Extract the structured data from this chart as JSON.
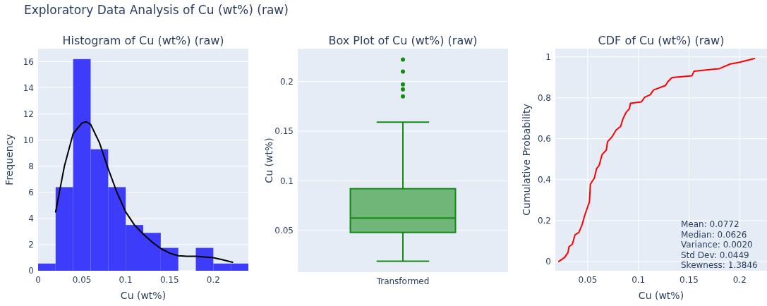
{
  "chart_data": [
    {
      "type": "histogram",
      "title": "Exploratory Data Analysis of Cu (wt%) (raw)",
      "subtitle": "Histogram of Cu (wt%) (raw)",
      "xlabel": "Cu (wt%)",
      "ylabel": "Frequency",
      "bins": [
        0,
        0.02,
        0.04,
        0.06,
        0.08,
        0.1,
        0.12,
        0.14,
        0.16,
        0.18,
        0.2,
        0.22,
        0.24
      ],
      "values": [
        0.55,
        6.4,
        16.2,
        9.3,
        6.4,
        3.5,
        2.9,
        1.75,
        0,
        1.75,
        0.55,
        0.55
      ],
      "color": "#3c3cfa",
      "series": [
        {
          "type": "line",
          "color": "#000000",
          "x": [
            0.02,
            0.03,
            0.04,
            0.05,
            0.055,
            0.06,
            0.07,
            0.08,
            0.09,
            0.1,
            0.11,
            0.12,
            0.13,
            0.14,
            0.15,
            0.16,
            0.17,
            0.18,
            0.19,
            0.2,
            0.21,
            0.222
          ],
          "values": [
            4.5,
            8,
            10.5,
            11.3,
            11.4,
            11.2,
            9.8,
            7.8,
            6,
            4.5,
            3.5,
            2.8,
            2.2,
            1.7,
            1.35,
            1.15,
            1.1,
            1.1,
            1.05,
            1,
            0.85,
            0.65
          ]
        }
      ],
      "xlim": [
        0,
        0.24
      ],
      "xticks": [
        0,
        0.05,
        0.1,
        0.15,
        0.2
      ],
      "ylim": [
        0,
        17
      ],
      "yticks": [
        0,
        2,
        4,
        6,
        8,
        10,
        12,
        14,
        16
      ],
      "grid": "y"
    },
    {
      "type": "box",
      "title": "Box Plot of Cu (wt%) (raw)",
      "ylabel": "Cu (wt%)",
      "categories": [
        "Transformed"
      ],
      "color": "#138a13",
      "boxes": [
        {
          "low": 0.019,
          "q1": 0.048,
          "median": 0.0625,
          "q3": 0.092,
          "high": 0.159,
          "outliers": [
            0.222,
            0.21,
            0.197,
            0.192,
            0.185
          ]
        }
      ],
      "ylim": [
        0.008,
        0.233
      ],
      "yticks": [
        0.05,
        0.1,
        0.15,
        0.2
      ],
      "grid": "y"
    },
    {
      "type": "line",
      "title": "CDF of Cu (wt%) (raw)",
      "xlabel": "Cu (wt%)",
      "ylabel": "Cumulative Probability",
      "series": [
        {
          "color": "#ff0000",
          "x": [
            0.0214,
            0.0273,
            0.0305,
            0.0316,
            0.0348,
            0.0374,
            0.0413,
            0.0446,
            0.0468,
            0.05,
            0.0517,
            0.0526,
            0.0565,
            0.0587,
            0.0613,
            0.0641,
            0.0684,
            0.0695,
            0.0738,
            0.0781,
            0.0825,
            0.0846,
            0.0879,
            0.0911,
            0.0922,
            0.103,
            0.1063,
            0.1117,
            0.115,
            0.1268,
            0.129,
            0.1333,
            0.1528,
            0.155,
            0.18,
            0.1907,
            0.1994,
            0.2147
          ],
          "values": [
            0,
            0.02,
            0.044,
            0.073,
            0.084,
            0.13,
            0.142,
            0.182,
            0.222,
            0.268,
            0.291,
            0.378,
            0.407,
            0.453,
            0.47,
            0.522,
            0.545,
            0.585,
            0.608,
            0.643,
            0.66,
            0.695,
            0.729,
            0.747,
            0.773,
            0.78,
            0.803,
            0.815,
            0.838,
            0.86,
            0.878,
            0.899,
            0.907,
            0.93,
            0.942,
            0.965,
            0.973,
            0.992
          ]
        }
      ],
      "annotations": [
        "Mean: 0.0772",
        "Median: 0.0626",
        "Variance: 0.0020",
        "Std Dev: 0.0449",
        "Skewness: 1.3846"
      ],
      "xlim": [
        0.018,
        0.227
      ],
      "xticks": [
        0.05,
        0.1,
        0.15,
        0.2
      ],
      "ylim": [
        -0.045,
        1.04
      ],
      "yticks": [
        0,
        0.2,
        0.4,
        0.6,
        0.8,
        1
      ],
      "grid": true
    }
  ]
}
